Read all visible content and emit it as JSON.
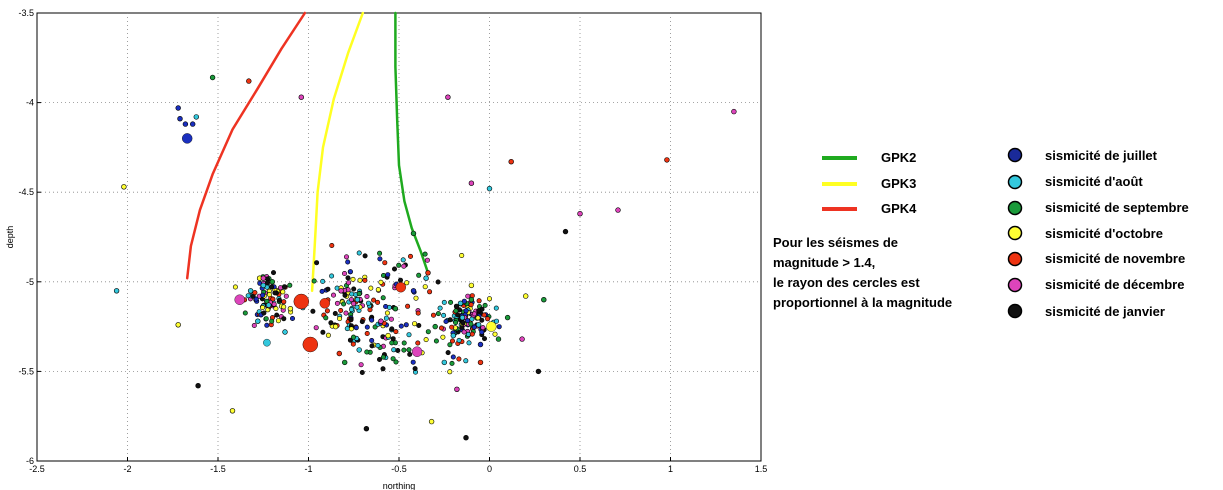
{
  "chart_data": {
    "type": "scatter",
    "title": "",
    "xlabel": "northing",
    "ylabel": "depth",
    "xlim": [
      -2.5,
      1.5
    ],
    "ylim": [
      -6,
      -3.5
    ],
    "xticks": [
      "-2.5",
      "-2",
      "-1.5",
      "-1",
      "-0.5",
      "0",
      "0.5",
      "1",
      "1.5"
    ],
    "yticks": [
      "-3.5",
      "-4",
      "-4.5",
      "-5",
      "-5.5",
      "-6"
    ],
    "grid": true,
    "wells": [
      {
        "name": "GPK2",
        "color": "#1faa1f",
        "x": [
          -0.52,
          -0.52,
          -0.51,
          -0.5,
          -0.47,
          -0.43,
          -0.38,
          -0.34
        ],
        "y": [
          -3.5,
          -3.8,
          -4.1,
          -4.35,
          -4.55,
          -4.7,
          -4.83,
          -4.95
        ]
      },
      {
        "name": "GPK3",
        "color": "#ffff22",
        "x": [
          -0.7,
          -0.78,
          -0.86,
          -0.92,
          -0.95,
          -0.96,
          -0.97,
          -0.98
        ],
        "y": [
          -3.5,
          -3.72,
          -3.98,
          -4.25,
          -4.5,
          -4.7,
          -4.88,
          -5.05
        ]
      },
      {
        "name": "GPK4",
        "color": "#ee3322",
        "x": [
          -1.02,
          -1.15,
          -1.28,
          -1.42,
          -1.53,
          -1.6,
          -1.65,
          -1.67
        ],
        "y": [
          -3.5,
          -3.7,
          -3.92,
          -4.15,
          -4.4,
          -4.6,
          -4.8,
          -4.98
        ]
      }
    ],
    "series": [
      {
        "name": "sismicité de juillet",
        "color": "#1a2fbf",
        "points": [
          [
            -1.72,
            -4.03
          ],
          [
            -1.71,
            -4.09
          ],
          [
            -1.68,
            -4.12
          ],
          [
            -1.64,
            -4.12
          ],
          [
            -1.67,
            -4.2
          ],
          [
            -0.42,
            -5.05
          ],
          [
            -0.9,
            -5.12
          ],
          [
            -0.05,
            -5.35
          ]
        ],
        "sizes": [
          1,
          1,
          1,
          1,
          2,
          1,
          1,
          1
        ]
      },
      {
        "name": "sismicité d'août",
        "color": "#33c8dd",
        "points": [
          [
            -2.06,
            -5.05
          ],
          [
            -1.32,
            -5.05
          ],
          [
            -1.25,
            -5.02
          ],
          [
            -1.22,
            -5.13
          ],
          [
            -1.13,
            -5.28
          ],
          [
            -1.23,
            -5.34
          ],
          [
            -0.72,
            -5.38
          ],
          [
            -0.16,
            -5.12
          ],
          [
            -0.15,
            -5.2
          ],
          [
            -0.06,
            -5.24
          ],
          [
            0.0,
            -4.48
          ],
          [
            -0.35,
            -4.98
          ],
          [
            -0.25,
            -5.45
          ],
          [
            -0.73,
            -5.1
          ],
          [
            -1.62,
            -4.08
          ],
          [
            -1.28,
            -5.22
          ],
          [
            -0.2,
            -5.3
          ]
        ],
        "sizes": [
          1,
          1,
          1,
          1,
          1,
          1.5,
          1,
          1,
          1,
          1,
          1,
          1,
          1,
          1,
          1,
          1,
          1
        ]
      },
      {
        "name": "sismicité de septembre",
        "color": "#1a9a3a",
        "points": [
          [
            -1.53,
            -3.86
          ],
          [
            -0.42,
            -4.73
          ],
          [
            -0.1,
            -5.1
          ],
          [
            0.1,
            -5.2
          ],
          [
            -0.52,
            -5.15
          ],
          [
            0.3,
            -5.1
          ],
          [
            -1.2,
            -5.0
          ],
          [
            -0.3,
            -5.25
          ],
          [
            -0.8,
            -5.45
          ],
          [
            0.05,
            -5.32
          ]
        ],
        "sizes": [
          1,
          1,
          1,
          1,
          1,
          1,
          1,
          1,
          1,
          1
        ]
      },
      {
        "name": "sismicité d'octobre",
        "color": "#ffff33",
        "points": [
          [
            -2.02,
            -4.47
          ],
          [
            -1.72,
            -5.24
          ],
          [
            -1.42,
            -5.72
          ],
          [
            0.01,
            -5.25
          ],
          [
            -0.1,
            -5.02
          ],
          [
            -0.32,
            -5.78
          ],
          [
            -1.27,
            -4.98
          ],
          [
            -0.85,
            -5.25
          ],
          [
            0.2,
            -5.08
          ],
          [
            -0.56,
            -5.3
          ],
          [
            -1.1,
            -5.15
          ]
        ],
        "sizes": [
          1,
          1,
          1,
          2,
          1,
          1,
          1,
          1,
          1,
          1,
          1
        ]
      },
      {
        "name": "sismicité de novembre",
        "color": "#ee3311",
        "points": [
          [
            -1.04,
            -5.11
          ],
          [
            -0.99,
            -5.35
          ],
          [
            -0.91,
            -5.12
          ],
          [
            -0.49,
            -5.03
          ],
          [
            -0.34,
            -4.95
          ],
          [
            -1.33,
            -3.88
          ],
          [
            0.12,
            -4.33
          ],
          [
            0.98,
            -4.32
          ],
          [
            -0.83,
            -5.4
          ],
          [
            -0.05,
            -5.45
          ]
        ],
        "sizes": [
          3,
          3,
          2,
          2,
          1,
          1,
          1,
          1,
          1,
          1
        ]
      },
      {
        "name": "sismicité de décembre",
        "color": "#dd44bb",
        "points": [
          [
            -1.04,
            -3.97
          ],
          [
            -0.23,
            -3.97
          ],
          [
            -0.1,
            -4.45
          ],
          [
            -1.38,
            -5.1
          ],
          [
            -0.4,
            -5.39
          ],
          [
            -1.25,
            -4.98
          ],
          [
            -0.6,
            -5.22
          ],
          [
            0.18,
            -5.32
          ],
          [
            -0.82,
            -5.05
          ],
          [
            -0.18,
            -5.6
          ],
          [
            0.5,
            -4.62
          ],
          [
            1.35,
            -4.05
          ],
          [
            0.71,
            -4.6
          ]
        ],
        "sizes": [
          1,
          1,
          1,
          2,
          2,
          1,
          1,
          1,
          1,
          1,
          1,
          1,
          1
        ]
      },
      {
        "name": "sismicité de janvier",
        "color": "#111111",
        "points": [
          [
            -1.61,
            -5.58
          ],
          [
            -0.13,
            -5.87
          ],
          [
            0.27,
            -5.5
          ],
          [
            -0.68,
            -5.82
          ],
          [
            0.42,
            -4.72
          ]
        ],
        "sizes": [
          1,
          1,
          1,
          1,
          1
        ]
      }
    ],
    "cluster_color_names": [
      "juillet",
      "août",
      "septembre",
      "octobre",
      "novembre",
      "décembre",
      "janvier"
    ]
  },
  "legend": {
    "wells": [
      "GPK2",
      "GPK3",
      "GPK4"
    ],
    "note_lines": [
      "Pour  les séismes de",
      "magnitude > 1.4,",
      "le rayon des cercles est",
      "proportionnel à la magnitude"
    ],
    "months": [
      "sismicité de juillet",
      "sismicité d'août",
      "sismicité de septembre",
      "sismicité d'octobre",
      "sismicité de novembre",
      "sismicité de décembre",
      "sismicité de janvier"
    ]
  }
}
